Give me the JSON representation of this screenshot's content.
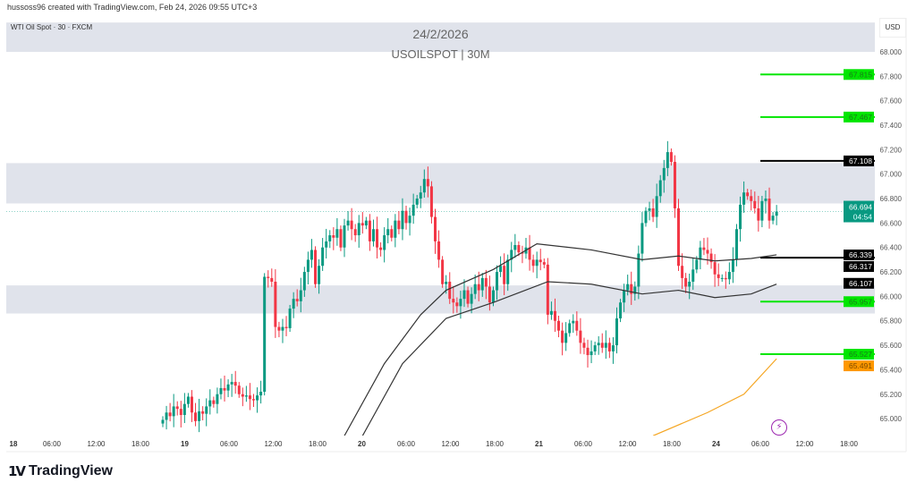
{
  "header": {
    "credit": "hussoss96 created with TradingView.com, Feb 24, 2026 09:55 UTC+3",
    "symbol_desc": "WTI Oil Spot · 30 · FXCM",
    "title_date": "24/2/2026",
    "title_symbol": "USOILSPOT | 30M",
    "currency": "USD"
  },
  "footer": {
    "brand": "TradingView",
    "logo_mark": "TV"
  },
  "colors": {
    "up": "#089981",
    "down": "#f23645",
    "zone": "#e0e3eb",
    "green_level": "#00e600",
    "black_level": "#000000",
    "orange": "#ff9800",
    "current": "#089981"
  },
  "chart_data": {
    "type": "candlestick",
    "ylim": [
      64.86,
      68.24
    ],
    "price_ticks": [
      "68.000",
      "67.800",
      "67.600",
      "67.400",
      "67.200",
      "67.000",
      "66.800",
      "66.600",
      "66.400",
      "66.200",
      "66.000",
      "65.800",
      "65.600",
      "65.400",
      "65.200",
      "65.000"
    ],
    "time_ticks": [
      "18",
      "06:00",
      "12:00",
      "18:00",
      "19",
      "06:00",
      "12:00",
      "18:00",
      "20",
      "06:00",
      "12:00",
      "18:00",
      "21",
      "06:00",
      "12:00",
      "18:00",
      "24",
      "06:00",
      "12:00",
      "18:00"
    ],
    "closes": [
      64.99,
      65.05,
      65.02,
      65.1,
      65.08,
      65.03,
      65.12,
      65.18,
      65.05,
      64.98,
      65.06,
      65.04,
      65.1,
      65.15,
      65.12,
      65.2,
      65.25,
      65.23,
      65.28,
      65.3,
      65.27,
      65.2,
      65.18,
      65.19,
      65.16,
      65.15,
      65.19,
      65.22,
      66.16,
      66.15,
      66.12,
      65.75,
      65.72,
      65.75,
      65.74,
      65.9,
      65.98,
      65.96,
      66.05,
      66.2,
      66.3,
      66.38,
      66.1,
      66.25,
      66.4,
      66.45,
      66.5,
      66.48,
      66.55,
      66.4,
      66.58,
      66.62,
      66.55,
      66.5,
      66.6,
      66.58,
      66.62,
      66.45,
      66.55,
      66.4,
      66.38,
      66.5,
      66.55,
      66.48,
      66.62,
      66.55,
      66.7,
      66.6,
      66.66,
      66.75,
      66.8,
      66.85,
      66.96,
      66.9,
      66.65,
      66.45,
      66.3,
      66.1,
      66.12,
      65.98,
      65.95,
      65.92,
      65.98,
      66.05,
      65.94,
      66.02,
      66.1,
      66.05,
      66.15,
      66.08,
      65.95,
      66.05,
      66.2,
      66.25,
      66.1,
      66.3,
      66.38,
      66.42,
      66.36,
      66.35,
      66.4,
      66.3,
      66.25,
      66.3,
      66.28,
      66.26,
      65.85,
      65.88,
      65.8,
      65.72,
      65.62,
      65.7,
      65.78,
      65.8,
      65.72,
      65.62,
      65.58,
      65.52,
      65.55,
      65.6,
      65.62,
      65.58,
      65.62,
      65.55,
      65.6,
      65.82,
      65.95,
      66.05,
      66.1,
      66.02,
      66.08,
      66.35,
      66.6,
      66.7,
      66.72,
      66.65,
      66.82,
      66.95,
      67.05,
      67.18,
      67.1,
      66.72,
      66.25,
      66.15,
      66.08,
      66.12,
      66.22,
      66.3,
      66.4,
      66.38,
      66.35,
      66.28,
      66.18,
      66.15,
      66.15,
      66.14,
      66.2,
      66.3,
      66.55,
      66.75,
      66.85,
      66.82,
      66.78,
      66.72,
      66.62,
      66.78,
      66.8,
      66.62,
      66.66,
      66.694
    ],
    "indicators": [
      {
        "color": "#333333",
        "points": [
          [
            50,
            64.86
          ],
          [
            61,
            65.45
          ],
          [
            71,
            65.85
          ],
          [
            78,
            66.05
          ],
          [
            91,
            66.22
          ],
          [
            103,
            66.43
          ],
          [
            118,
            66.38
          ],
          [
            132,
            66.3
          ],
          [
            142,
            66.33
          ],
          [
            152,
            66.29
          ],
          [
            162,
            66.31
          ],
          [
            169,
            66.34
          ]
        ]
      },
      {
        "color": "#333333",
        "points": [
          [
            55,
            64.86
          ],
          [
            66,
            65.45
          ],
          [
            78,
            65.82
          ],
          [
            91,
            65.95
          ],
          [
            106,
            66.12
          ],
          [
            118,
            66.1
          ],
          [
            132,
            66.02
          ],
          [
            142,
            66.05
          ],
          [
            152,
            65.99
          ],
          [
            162,
            66.02
          ],
          [
            169,
            66.1
          ]
        ]
      },
      {
        "color": "#f5a623",
        "points": [
          [
            135,
            64.86
          ],
          [
            150,
            65.05
          ],
          [
            160,
            65.2
          ],
          [
            169,
            65.49
          ]
        ]
      }
    ],
    "zones": [
      [
        68.0,
        68.24
      ],
      [
        66.76,
        67.09
      ],
      [
        65.86,
        66.09
      ]
    ],
    "levels": [
      {
        "price": 67.815,
        "label": "67.815",
        "color": "#00e600",
        "text": "#1a7a1a"
      },
      {
        "price": 67.467,
        "label": "67.467",
        "color": "#00e600",
        "text": "#1a7a1a"
      },
      {
        "price": 67.108,
        "label": "67.108",
        "color": "#000000",
        "text": "#ffffff"
      },
      {
        "price": 66.317,
        "label": "66.317",
        "color": "#000000",
        "text": "#ffffff"
      },
      {
        "price": 65.957,
        "label": "65.957",
        "color": "#00e600",
        "text": "#1a7a1a"
      },
      {
        "price": 65.527,
        "label": "65.527",
        "color": "#00e600",
        "text": "#1a7a1a"
      }
    ],
    "tags": [
      {
        "price": 66.339,
        "label": "66.339",
        "bg": "#000000",
        "text": "#ffffff"
      },
      {
        "price": 66.107,
        "label": "66.107",
        "bg": "#000000",
        "text": "#ffffff"
      },
      {
        "price": 65.491,
        "label": "65.491",
        "bg": "#ff9800",
        "text": "#7a4a00"
      }
    ],
    "current": {
      "price": 66.694,
      "label": "66.694",
      "countdown": "04:54"
    }
  }
}
